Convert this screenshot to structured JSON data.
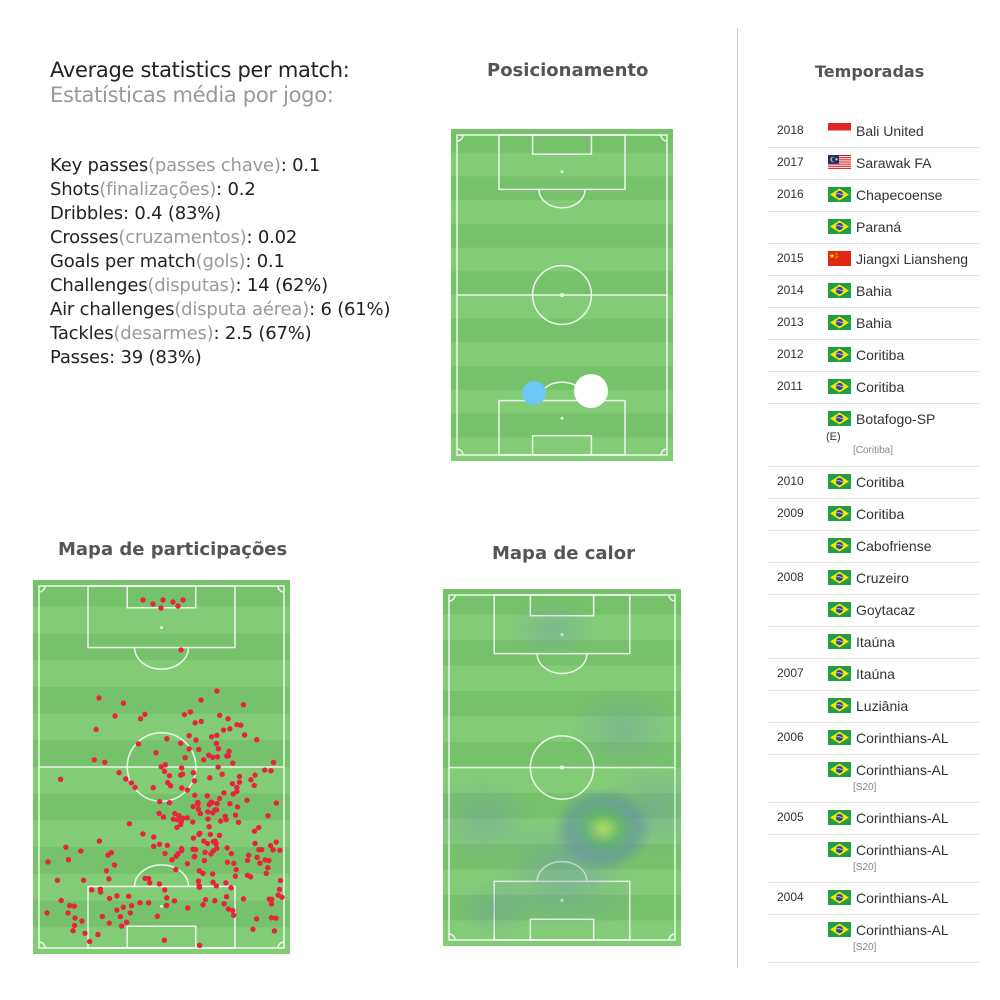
{
  "stats": {
    "title_en": "Average statistics per match:",
    "title_pt": "Estatísticas média por jogo:",
    "rows": [
      {
        "label": "Key passes",
        "pt": "(passes chave)",
        "value": ":  0.1"
      },
      {
        "label": "Shots",
        "pt": "(finalizações)",
        "value": ":   0.2"
      },
      {
        "label": "Dribbles",
        "pt": "",
        "value": ": 0.4 (83%)"
      },
      {
        "label": "Crosses",
        "pt": "(cruzamentos)",
        "value": ": 0.02"
      },
      {
        "label": "Goals per match",
        "pt": "(gols)",
        "value": ": 0.1"
      },
      {
        "label": "Challenges",
        "pt": "(disputas)",
        "value": ":  14 (62%)"
      },
      {
        "label": "Air challenges",
        "pt": "(disputa aérea)",
        "value": ": 6 (61%)"
      },
      {
        "label": "Tackles",
        "pt": "(desarmes)",
        "value": ": 2.5 (67%)"
      },
      {
        "label": "Passes",
        "pt": "",
        "value": ": 39 (83%)"
      }
    ]
  },
  "sections": {
    "positioning": "Posicionamento",
    "participation": "Mapa de participações",
    "heatmap": "Mapa de calor",
    "seasons": "Temporadas"
  },
  "colors": {
    "pitch_light": "#83cc76",
    "pitch_dark": "#76c26a",
    "participation_dot": "#e8233b",
    "position_light_dot": "#6ec6f5",
    "position_main_dot": "#ffffff"
  },
  "seasons": [
    {
      "year": "2018",
      "flag": "indonesia",
      "club": "Bali United"
    },
    {
      "year": "2017",
      "flag": "malaysia",
      "club": "Sarawak FA"
    },
    {
      "year": "2016",
      "flag": "brazil",
      "club": "Chapecoense"
    },
    {
      "year": "",
      "flag": "brazil",
      "club": "Paraná"
    },
    {
      "year": "2015",
      "flag": "china",
      "club": "Jiangxi Liansheng"
    },
    {
      "year": "2014",
      "flag": "brazil",
      "club": "Bahia"
    },
    {
      "year": "2013",
      "flag": "brazil",
      "club": "Bahia"
    },
    {
      "year": "2012",
      "flag": "brazil",
      "club": "Coritiba"
    },
    {
      "year": "2011",
      "flag": "brazil",
      "club": "Coritiba"
    },
    {
      "year": "",
      "flag": "brazil",
      "club": "Botafogo-SP",
      "tag": "(E)",
      "note": "[Coritiba]"
    },
    {
      "year": "2010",
      "flag": "brazil",
      "club": "Coritiba"
    },
    {
      "year": "2009",
      "flag": "brazil",
      "club": "Coritiba"
    },
    {
      "year": "",
      "flag": "brazil",
      "club": "Cabofriense"
    },
    {
      "year": "2008",
      "flag": "brazil",
      "club": "Cruzeiro"
    },
    {
      "year": "",
      "flag": "brazil",
      "club": "Goytacaz"
    },
    {
      "year": "",
      "flag": "brazil",
      "club": "Itaúna"
    },
    {
      "year": "2007",
      "flag": "brazil",
      "club": "Itaúna"
    },
    {
      "year": "",
      "flag": "brazil",
      "club": "Luziânia"
    },
    {
      "year": "2006",
      "flag": "brazil",
      "club": "Corinthians-AL"
    },
    {
      "year": "",
      "flag": "brazil",
      "club": "Corinthians-AL",
      "note": "[S20]"
    },
    {
      "year": "2005",
      "flag": "brazil",
      "club": "Corinthians-AL"
    },
    {
      "year": "",
      "flag": "brazil",
      "club": "Corinthians-AL",
      "note": "[S20]"
    },
    {
      "year": "2004",
      "flag": "brazil",
      "club": "Corinthians-AL"
    },
    {
      "year": "",
      "flag": "brazil",
      "club": "Corinthians-AL",
      "note": "[S20]"
    }
  ]
}
